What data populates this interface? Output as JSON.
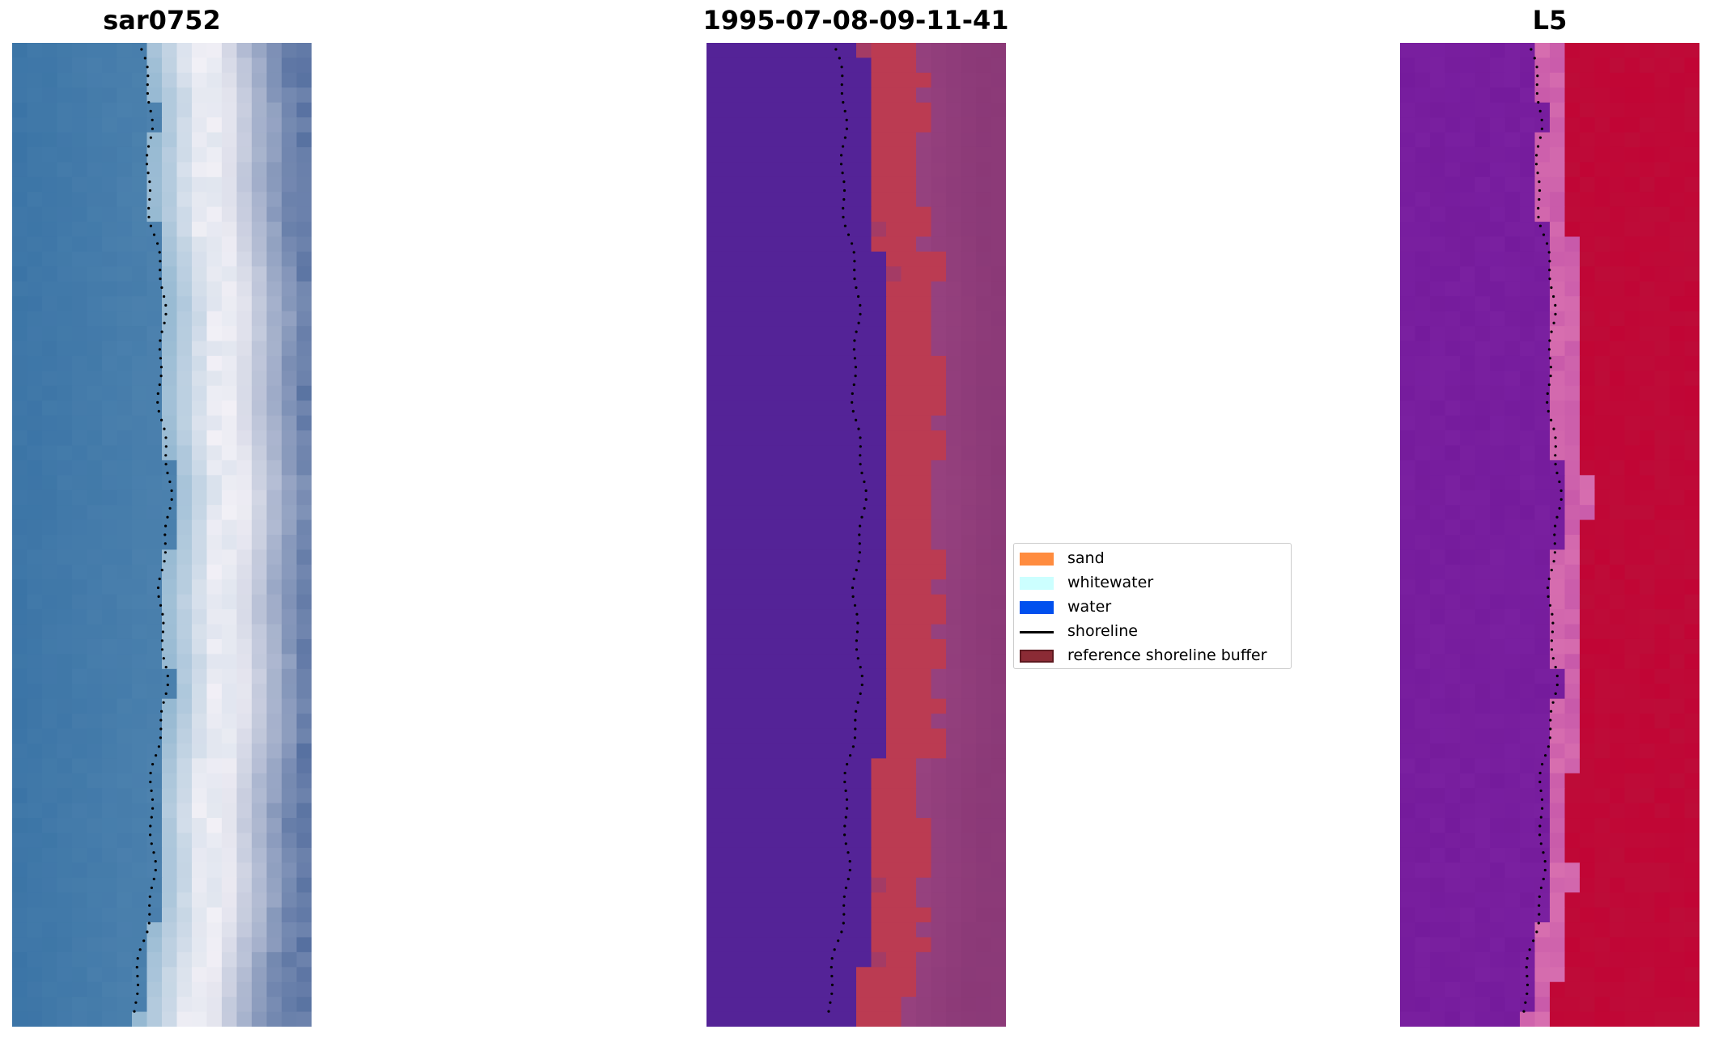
{
  "panels": [
    {
      "title": "sar0752",
      "kind": "rgb-image"
    },
    {
      "title": "1995-07-08-09-11-41",
      "kind": "classified-image"
    },
    {
      "title": "L5",
      "kind": "false-color-image"
    }
  ],
  "legend": {
    "items": [
      {
        "label": "sand",
        "type": "patch",
        "color": "#ff8c3f"
      },
      {
        "label": "whitewater",
        "type": "patch",
        "color": "#ccffff"
      },
      {
        "label": "water",
        "type": "patch",
        "color": "#0050ee"
      },
      {
        "label": "shoreline",
        "type": "line",
        "color": "#000000"
      },
      {
        "label": "reference shoreline buffer",
        "type": "patch",
        "color": "#8b2b35",
        "edge": "#5e1a20"
      }
    ]
  },
  "colors": {
    "panel1_water": "#3b74a6",
    "panel1_foam": "#f2f0f6",
    "panel1_inland": "#5670a0",
    "panel2_water": "#542397",
    "panel2_buffer": "#bb3b52",
    "panel2_land": "#8c3a78",
    "panel3_water": "#7a20a0",
    "panel3_land": "#c10535",
    "shoreline_dots": "#000000"
  }
}
